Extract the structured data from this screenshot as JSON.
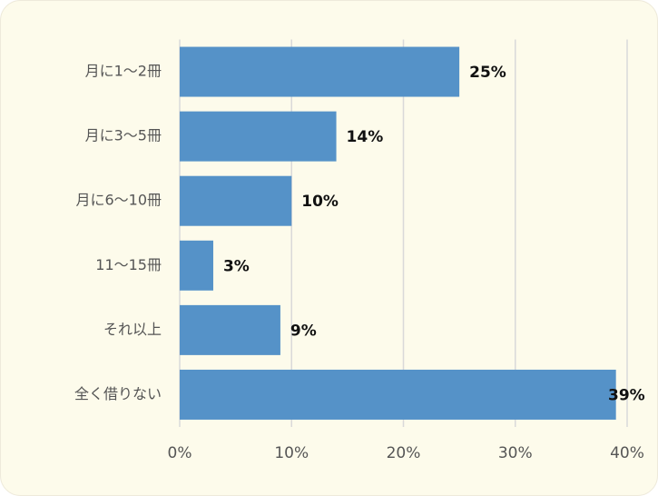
{
  "chart_data": {
    "type": "hbar",
    "categories": [
      "月に1〜2冊",
      "月に3〜5冊",
      "月に6〜10冊",
      "11〜15冊",
      "それ以上",
      "全く借りない"
    ],
    "values": [
      25,
      14,
      10,
      3,
      9,
      39
    ],
    "value_labels": [
      "25%",
      "14%",
      "10%",
      "3%",
      "9%",
      "39%"
    ],
    "color": "#5592c8",
    "xlim": [
      0,
      40
    ],
    "xticks": [
      {
        "value": 0,
        "label": "0%"
      },
      {
        "value": 10,
        "label": "10%"
      },
      {
        "value": 20,
        "label": "20%"
      },
      {
        "value": 30,
        "label": "30%"
      },
      {
        "value": 40,
        "label": "40%"
      }
    ],
    "grid": true
  }
}
